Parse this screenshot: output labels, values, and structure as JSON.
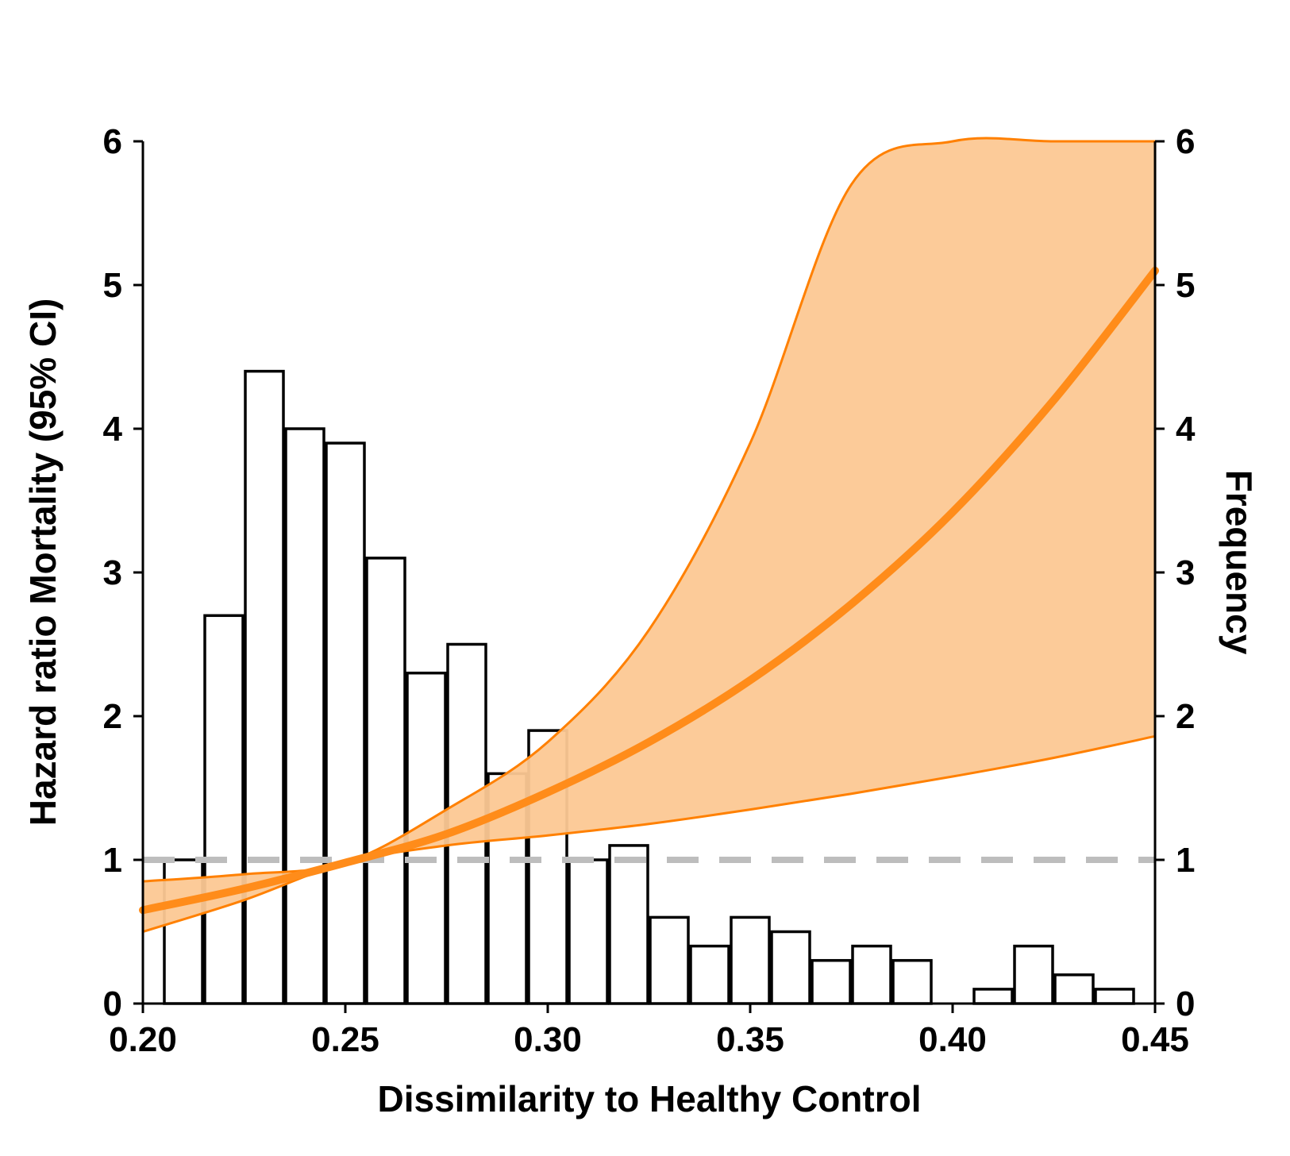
{
  "chart_data": {
    "type": "bar",
    "title": "",
    "xlabel": "Dissimilarity to Healthy Control",
    "ylabel_left": "Hazard ratio Mortality (95% CI)",
    "ylabel_right": "Frequency",
    "xlim": [
      0.2,
      0.45
    ],
    "ylim": [
      0,
      6
    ],
    "x_ticks": [
      "0.20",
      "0.25",
      "0.30",
      "0.35",
      "0.40",
      "0.45"
    ],
    "y_ticks_left": [
      "0",
      "1",
      "2",
      "3",
      "4",
      "5",
      "6"
    ],
    "y_ticks_right": [
      "0",
      "1",
      "2",
      "3",
      "4",
      "5",
      "6"
    ],
    "grid": false,
    "histogram": {
      "bin_width": 0.01,
      "bin_starts": [
        0.205,
        0.215,
        0.225,
        0.235,
        0.245,
        0.255,
        0.265,
        0.275,
        0.285,
        0.295,
        0.305,
        0.315,
        0.325,
        0.335,
        0.345,
        0.355,
        0.365,
        0.375,
        0.385,
        0.395,
        0.405,
        0.415,
        0.425,
        0.435
      ],
      "values": [
        1.0,
        2.7,
        4.4,
        4.0,
        3.9,
        3.1,
        2.3,
        2.5,
        1.6,
        1.9,
        1.0,
        1.1,
        0.6,
        0.4,
        0.6,
        0.5,
        0.3,
        0.4,
        0.3,
        0.0,
        0.1,
        0.4,
        0.2,
        0.1
      ],
      "fill": "#ffffff",
      "stroke": "#000000"
    },
    "hazard_ratio": {
      "x": [
        0.2,
        0.225,
        0.25,
        0.275,
        0.3,
        0.325,
        0.35,
        0.375,
        0.4,
        0.425,
        0.45
      ],
      "estimate": [
        0.65,
        0.8,
        0.98,
        1.18,
        1.47,
        1.82,
        2.25,
        2.78,
        3.42,
        4.2,
        5.1
      ],
      "lower": [
        0.5,
        0.72,
        0.98,
        1.1,
        1.17,
        1.25,
        1.35,
        1.46,
        1.58,
        1.71,
        1.86
      ],
      "upper": [
        0.85,
        0.9,
        0.98,
        1.35,
        1.82,
        2.6,
        3.9,
        5.7,
        6.0,
        6.0,
        6.0
      ],
      "line_color": "#ff8c1a",
      "band_color": "#fcc894",
      "band_edge_color": "#ff8000"
    },
    "reference_line": {
      "y": 1,
      "color": "#bdbdbd",
      "style": "dashed"
    }
  }
}
